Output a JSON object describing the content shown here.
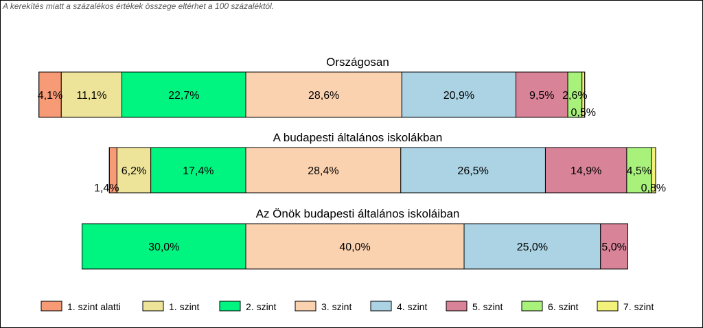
{
  "note": "A kerekítés miatt a  százalékos értékek összege eltérhet a 100 százaléktól.",
  "chart_data": {
    "type": "bar",
    "orientation": "horizontal-stacked",
    "categories": [
      "1. szint alatti",
      "1. szint",
      "2. szint",
      "3. szint",
      "4. szint",
      "5. szint",
      "6. szint",
      "7. szint"
    ],
    "colors": [
      "#f79a76",
      "#ede49a",
      "#00f580",
      "#fbd2b0",
      "#abd3e4",
      "#d98399",
      "#a8f27c",
      "#f2f27a"
    ],
    "groups": [
      {
        "title": "Országosan",
        "values": [
          4.1,
          11.1,
          22.7,
          28.6,
          20.9,
          9.5,
          2.6,
          0.5
        ],
        "labels": [
          "4,1%",
          "11,1%",
          "22,7%",
          "28,6%",
          "20,9%",
          "9,5%",
          "2,6%",
          "0,5%"
        ]
      },
      {
        "title": "A budapesti általános iskolákban",
        "values": [
          1.4,
          6.2,
          17.4,
          28.4,
          26.5,
          14.9,
          4.5,
          0.8
        ],
        "labels": [
          "1,4%",
          "6,2%",
          "17,4%",
          "28,4%",
          "26,5%",
          "14,9%",
          "4,5%",
          "0,8%"
        ]
      },
      {
        "title": "Az Önök budapesti általános iskoláiban",
        "values": [
          0,
          0,
          30.0,
          40.0,
          25.0,
          5.0,
          0,
          0
        ],
        "labels": [
          "",
          "",
          "30,0%",
          "40,0%",
          "25,0%",
          "5,0%",
          "",
          ""
        ]
      }
    ],
    "legend_position": "bottom",
    "alignment": "centered between 3. and 4. level"
  }
}
